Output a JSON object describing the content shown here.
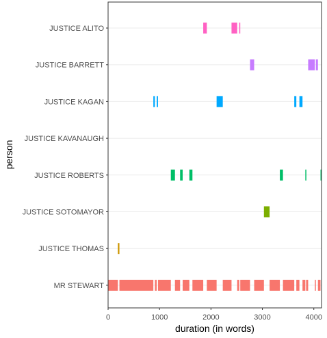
{
  "chart_data": {
    "type": "timeline",
    "xlabel": "duration (in words)",
    "ylabel": "person",
    "xlim": [
      0,
      4150
    ],
    "x_ticks": [
      0,
      1000,
      2000,
      3000,
      4000
    ],
    "x_tick_labels": [
      "0",
      "1000",
      "2000",
      "3000",
      "4000"
    ],
    "grid": "horizontal major lines only",
    "categories": [
      "JUSTICE ALITO",
      "JUSTICE BARRETT",
      "JUSTICE KAGAN",
      "JUSTICE KAVANAUGH",
      "JUSTICE ROBERTS",
      "JUSTICE SOTOMAYOR",
      "JUSTICE THOMAS",
      "MR STEWART"
    ],
    "series": [
      {
        "person": "JUSTICE ALITO",
        "color": "#FF61C3",
        "segments": [
          [
            1850,
            1920
          ],
          [
            2400,
            2510
          ],
          [
            2550,
            2570
          ]
        ]
      },
      {
        "person": "JUSTICE BARRETT",
        "color": "#C77CFF",
        "segments": [
          [
            2760,
            2840
          ],
          [
            3890,
            4020
          ],
          [
            4040,
            4080
          ]
        ]
      },
      {
        "person": "JUSTICE KAGAN",
        "color": "#00A9FF",
        "segments": [
          [
            880,
            910
          ],
          [
            945,
            970
          ],
          [
            2110,
            2230
          ],
          [
            3620,
            3660
          ],
          [
            3720,
            3780
          ]
        ]
      },
      {
        "person": "JUSTICE KAVANAUGH",
        "color": "#00BFC4",
        "segments": []
      },
      {
        "person": "JUSTICE ROBERTS",
        "color": "#00BE67",
        "segments": [
          [
            1220,
            1300
          ],
          [
            1400,
            1450
          ],
          [
            1580,
            1640
          ],
          [
            3340,
            3400
          ],
          [
            3835,
            3850
          ],
          [
            4130,
            4150
          ]
        ]
      },
      {
        "person": "JUSTICE SOTOMAYOR",
        "color": "#7CAE00",
        "segments": [
          [
            3030,
            3140
          ]
        ]
      },
      {
        "person": "JUSTICE THOMAS",
        "color": "#CD9600",
        "segments": [
          [
            190,
            220
          ]
        ]
      },
      {
        "person": "MR STEWART",
        "color": "#F8766D",
        "segments": [
          [
            0,
            190
          ],
          [
            220,
            880
          ],
          [
            910,
            945
          ],
          [
            970,
            1220
          ],
          [
            1300,
            1400
          ],
          [
            1450,
            1580
          ],
          [
            1640,
            1850
          ],
          [
            1920,
            2110
          ],
          [
            2230,
            2400
          ],
          [
            2510,
            2550
          ],
          [
            2570,
            2760
          ],
          [
            2840,
            3030
          ],
          [
            3140,
            3340
          ],
          [
            3400,
            3620
          ],
          [
            3660,
            3720
          ],
          [
            3780,
            3835
          ],
          [
            3850,
            3890
          ],
          [
            4020,
            4040
          ],
          [
            4080,
            4130
          ]
        ]
      }
    ]
  }
}
